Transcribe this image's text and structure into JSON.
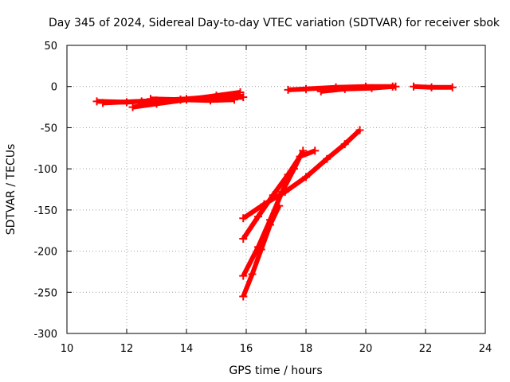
{
  "chart_data": {
    "type": "scatter",
    "title": "Day 345 of 2024, Sidereal Day-to-day VTEC variation (SDTVAR) for receiver sbok",
    "xlabel": "GPS time / hours",
    "ylabel": "SDTVAR / TECUs",
    "xlim": [
      10,
      24
    ],
    "ylim": [
      -300,
      50
    ],
    "xticks": [
      10,
      12,
      14,
      16,
      18,
      20,
      22,
      24
    ],
    "yticks": [
      50,
      0,
      -50,
      -100,
      -150,
      -200,
      -250,
      -300
    ],
    "grid": true,
    "legend": "none",
    "series_color": "#ff0000",
    "series": [
      {
        "values": [
          [
            11.0,
            -18
          ],
          [
            12.0,
            -19
          ],
          [
            13.0,
            -17
          ],
          [
            14.0,
            -15
          ],
          [
            15.0,
            -12
          ],
          [
            15.8,
            -10
          ]
        ]
      },
      {
        "values": [
          [
            11.2,
            -20
          ],
          [
            12.5,
            -18
          ],
          [
            13.8,
            -16
          ],
          [
            15.0,
            -14
          ],
          [
            15.9,
            -13
          ]
        ]
      },
      {
        "values": [
          [
            12.2,
            -25
          ],
          [
            13.0,
            -21
          ],
          [
            14.0,
            -16
          ],
          [
            15.0,
            -11
          ],
          [
            15.8,
            -7
          ]
        ]
      },
      {
        "values": [
          [
            12.8,
            -15
          ],
          [
            13.8,
            -16
          ],
          [
            14.8,
            -17
          ],
          [
            15.6,
            -16
          ]
        ]
      },
      {
        "values": [
          [
            17.4,
            -4
          ],
          [
            18.0,
            -3
          ],
          [
            19.0,
            -1
          ],
          [
            20.0,
            0
          ],
          [
            21.0,
            0
          ]
        ]
      },
      {
        "values": [
          [
            18.5,
            -6
          ],
          [
            19.3,
            -3
          ],
          [
            20.2,
            -2
          ],
          [
            20.9,
            0
          ]
        ]
      },
      {
        "values": [
          [
            21.6,
            0
          ],
          [
            22.2,
            -1
          ],
          [
            22.9,
            -1
          ]
        ]
      },
      {
        "values": [
          [
            15.9,
            -160
          ],
          [
            16.6,
            -143
          ],
          [
            17.3,
            -128
          ],
          [
            18.0,
            -110
          ],
          [
            18.7,
            -88
          ],
          [
            19.3,
            -70
          ],
          [
            19.8,
            -53
          ]
        ]
      },
      {
        "values": [
          [
            15.9,
            -185
          ],
          [
            16.4,
            -158
          ],
          [
            16.9,
            -132
          ],
          [
            17.4,
            -107
          ],
          [
            17.8,
            -85
          ],
          [
            18.3,
            -78
          ]
        ]
      },
      {
        "values": [
          [
            15.9,
            -230
          ],
          [
            16.4,
            -195
          ],
          [
            16.8,
            -162
          ],
          [
            17.2,
            -128
          ],
          [
            17.6,
            -100
          ],
          [
            17.9,
            -78
          ]
        ]
      },
      {
        "values": [
          [
            15.9,
            -255
          ],
          [
            16.2,
            -228
          ],
          [
            16.5,
            -198
          ],
          [
            16.8,
            -168
          ],
          [
            17.1,
            -145
          ]
        ]
      }
    ]
  }
}
